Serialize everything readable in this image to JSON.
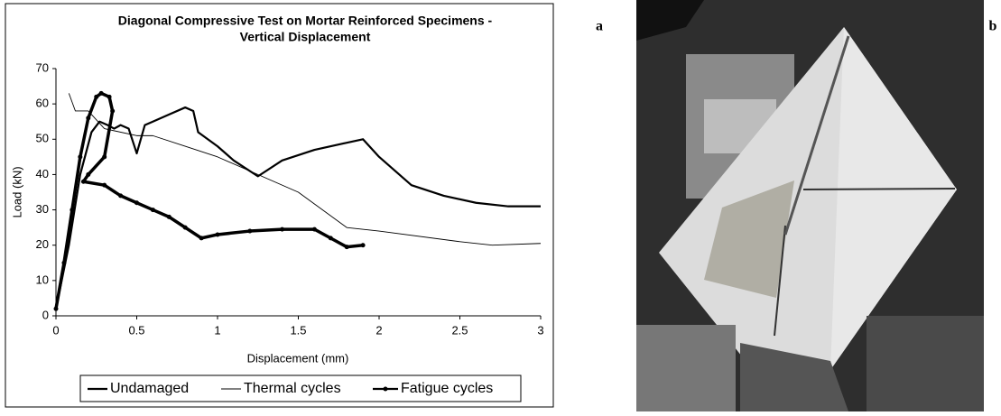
{
  "panel_labels": [
    "a",
    "b"
  ],
  "chart_data": {
    "type": "line",
    "title": [
      "Diagonal Compressive Test on  Mortar Reinforced Specimens -",
      "Vertical Displacement"
    ],
    "x_label": "Displacement (mm)",
    "y_label": "Load (kN)",
    "xlim": [
      0,
      3
    ],
    "xticks": [
      0,
      0.5,
      1,
      1.5,
      2,
      2.5,
      3
    ],
    "ylim": [
      0,
      70
    ],
    "yticks": [
      0,
      10,
      20,
      30,
      40,
      50,
      60,
      70
    ],
    "legend": "bottom",
    "series": [
      {
        "name": "Undamaged",
        "color": "#000000",
        "width": 2.2,
        "marker": false,
        "x": [
          0,
          0.08,
          0.15,
          0.22,
          0.27,
          0.32,
          0.36,
          0.4,
          0.45,
          0.5,
          0.55,
          0.6,
          0.7,
          0.8,
          0.85,
          0.88,
          1.0,
          1.1,
          1.25,
          1.4,
          1.6,
          1.8,
          1.9,
          2.0,
          2.2,
          2.4,
          2.6,
          2.8,
          3.0
        ],
        "values": [
          2,
          20,
          40,
          52,
          55,
          54,
          53,
          54,
          53,
          46,
          54,
          55,
          57,
          59,
          58,
          52,
          48,
          44,
          39.5,
          44,
          47,
          49,
          50,
          45,
          37,
          34,
          32,
          31,
          31
        ]
      },
      {
        "name": "Thermal cycles",
        "color": "#000000",
        "width": 0.9,
        "marker": false,
        "x": [
          0.08,
          0.12,
          0.2,
          0.3,
          0.5,
          0.6,
          0.8,
          1.0,
          1.2,
          1.5,
          1.8,
          2.0,
          2.5,
          2.7,
          3.0
        ],
        "values": [
          63,
          58,
          58,
          53,
          51,
          51,
          48,
          45,
          41,
          35,
          25,
          24,
          21,
          20,
          20.5
        ]
      },
      {
        "name": "Fatigue cycles",
        "color": "#000000",
        "width": 3.5,
        "marker": true,
        "x": [
          0,
          0.05,
          0.1,
          0.15,
          0.2,
          0.25,
          0.28,
          0.33,
          0.35,
          0.3,
          0.2,
          0.17,
          0.3,
          0.4,
          0.5,
          0.6,
          0.7,
          0.8,
          0.9,
          1.0,
          1.2,
          1.4,
          1.6,
          1.7,
          1.8,
          1.9
        ],
        "values": [
          2,
          15,
          30,
          45,
          56,
          62,
          63,
          62,
          58,
          45,
          40,
          38,
          37,
          34,
          32,
          30,
          28,
          25,
          22,
          23,
          24,
          24.5,
          24.5,
          22,
          19.5,
          20
        ]
      }
    ]
  }
}
